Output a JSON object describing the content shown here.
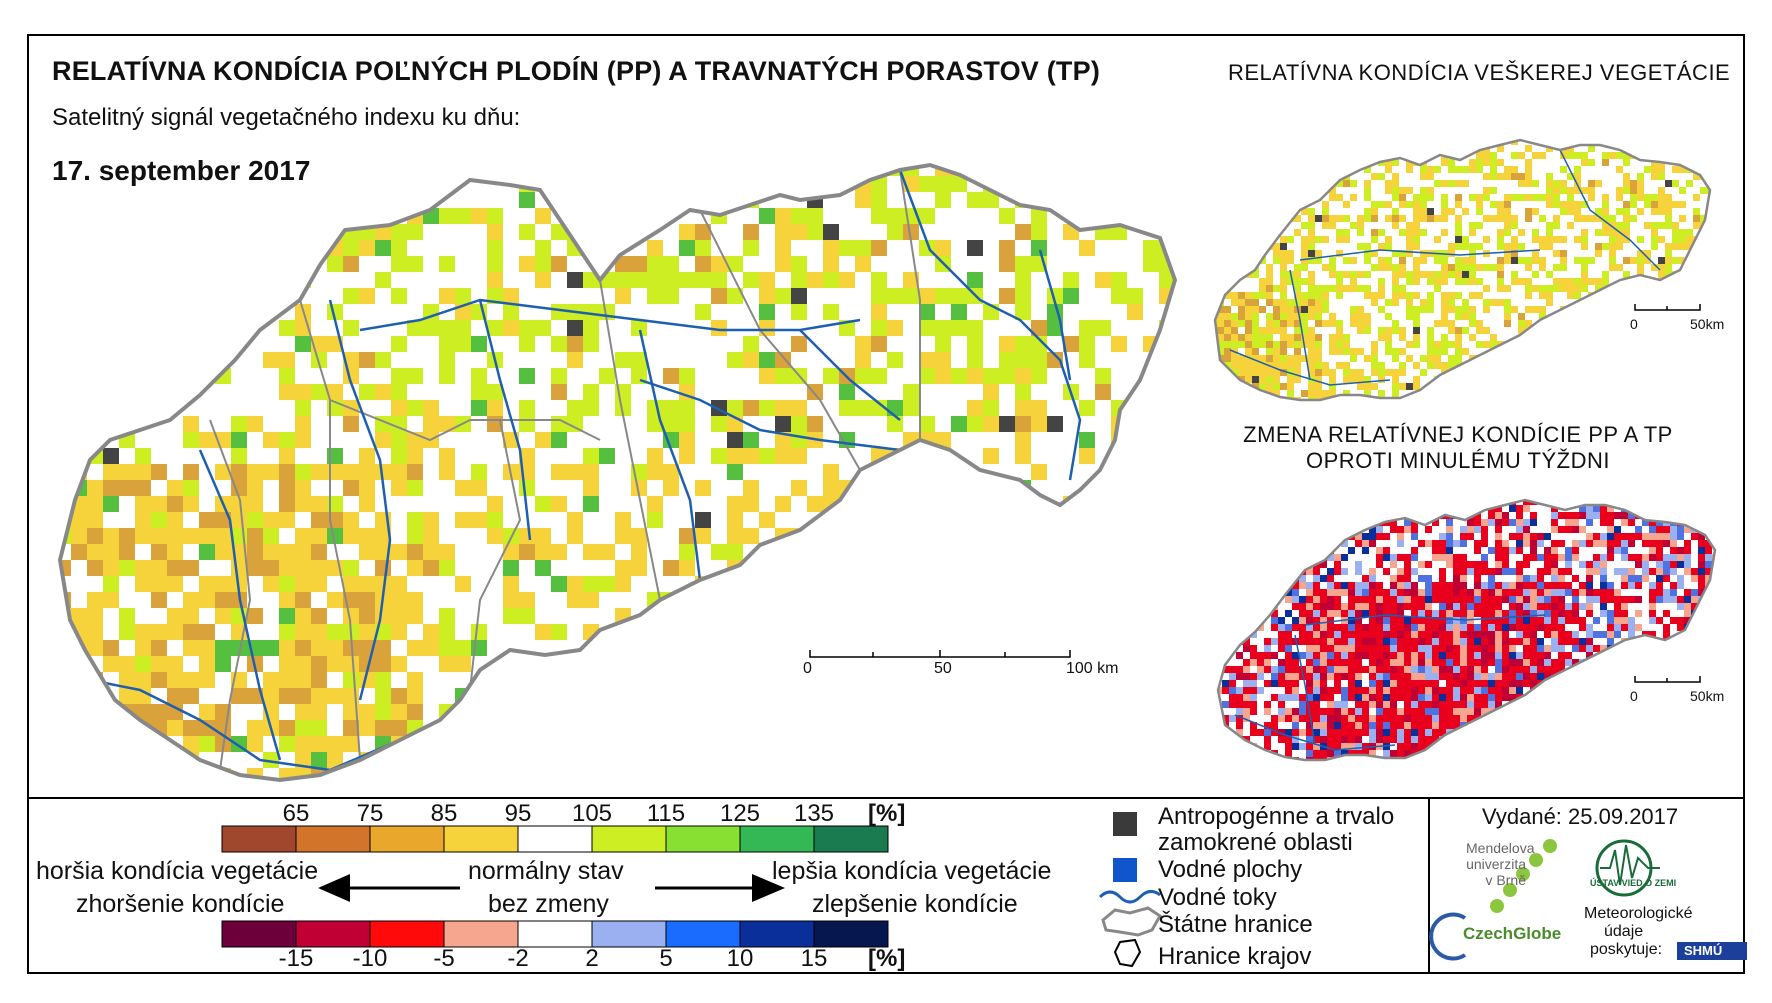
{
  "title": "RELATÍVNA KONDÍCIA POĽNÝCH PLODÍN (PP) A TRAVNATÝCH PORASTOV (TP)",
  "subtitle": "Satelitný signál vegetačného indexu ku dňu:",
  "date": "17. september 2017",
  "inset_top_title": "RELATÍVNA KONDÍCIA VEŠKEREJ VEGETÁCIE",
  "inset_bottom_title_line1": "ZMENA RELATÍVNEJ KONDÍCIE PP A TP",
  "inset_bottom_title_line2": "OPROTI MINULÉMU TÝŽDNI",
  "scale_main": {
    "zero": "0",
    "mid": "50",
    "end": "100 km"
  },
  "scale_inset": {
    "zero": "0",
    "end": "50km"
  },
  "legend": {
    "unit": "[%]",
    "condition_ticks": [
      "65",
      "75",
      "85",
      "95",
      "105",
      "115",
      "125",
      "135"
    ],
    "condition_colors": [
      "#a0472e",
      "#d2752a",
      "#e9a72b",
      "#f6d33a",
      "#ffffff",
      "#ccee22",
      "#88e033",
      "#33b855",
      "#1a7a50"
    ],
    "change_ticks": [
      "-15",
      "-10",
      "-5",
      "-2",
      "2",
      "5",
      "10",
      "15"
    ],
    "change_colors": [
      "#6b003b",
      "#c00035",
      "#ff0a0a",
      "#f6a58e",
      "#ffffff",
      "#9ab0f0",
      "#1a6bff",
      "#0b2f9a",
      "#06164f"
    ],
    "worse_line1": "horšia kondícia vegetácie",
    "worse_line2": "zhoršenie kondície",
    "normal_line1": "normálny stav",
    "normal_line2": "bez zmeny",
    "better_line1": "lepšia kondícia vegetácie",
    "better_line2": "zlepšenie kondície"
  },
  "symbols": {
    "anthropogenic_line1": "Antropogénne a trvalo",
    "anthropogenic_line2": "zamokrené oblasti",
    "water_bodies": "Vodné plochy",
    "rivers": "Vodné toky",
    "state_border": "Štátne hranice",
    "regional_border": "Hranice krajov"
  },
  "issued": "Vydané: 25.09.2017",
  "logos": {
    "mendel_line1": "Mendelova",
    "mendel_line2": "univerzita",
    "mendel_line3": "v Brně",
    "czechglobe": "CzechGlobe",
    "uvgz": "ÚSTAV VIED O ZEMI",
    "meteo_line1": "Meteorologické",
    "meteo_line2": "údaje",
    "meteo_line3": "poskytuje:",
    "shmu": "SHMÚ"
  },
  "colors": {
    "map_yellow": "#f6d33a",
    "map_orange": "#d9a23a",
    "map_green": "#ccee22",
    "river": "#1f5fb0",
    "border": "#888888",
    "change_red": "#e8001c",
    "change_blue": "#4f72e0"
  }
}
